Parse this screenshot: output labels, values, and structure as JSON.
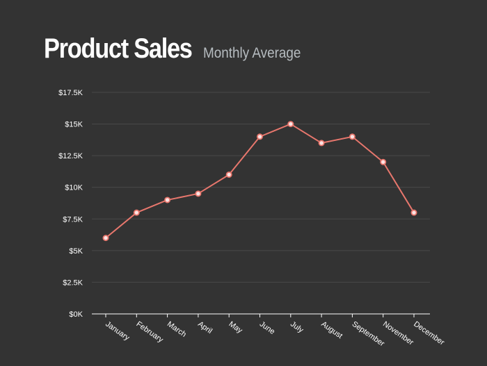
{
  "chart_data": {
    "type": "line",
    "title": "Product Sales",
    "subtitle": "Monthly Average",
    "categories": [
      "January",
      "February",
      "March",
      "April",
      "May",
      "June",
      "July",
      "August",
      "September",
      "November",
      "December"
    ],
    "series": [
      {
        "values": [
          6000,
          8000,
          9000,
          9500,
          11000,
          14000,
          15000,
          13500,
          14000,
          12000,
          8000
        ]
      }
    ],
    "ylim": [
      0,
      17500
    ],
    "y_ticks": [
      {
        "value": 0,
        "label": "$0K"
      },
      {
        "value": 2500,
        "label": "$2.5K"
      },
      {
        "value": 5000,
        "label": "$5K"
      },
      {
        "value": 7500,
        "label": "$7.5K"
      },
      {
        "value": 10000,
        "label": "$10K"
      },
      {
        "value": 12500,
        "label": "$12.5K"
      },
      {
        "value": 15000,
        "label": "$15K"
      },
      {
        "value": 17500,
        "label": "$17.5K"
      }
    ],
    "grid": true,
    "legend": "none",
    "colors": {
      "background": "#333333",
      "line": "#e8776d",
      "marker_fill": "#fbe4e4",
      "grid": "#4a4a4a",
      "axis": "#ffffff",
      "text": "#ffffff",
      "subtitle": "#b6bcc0"
    }
  }
}
